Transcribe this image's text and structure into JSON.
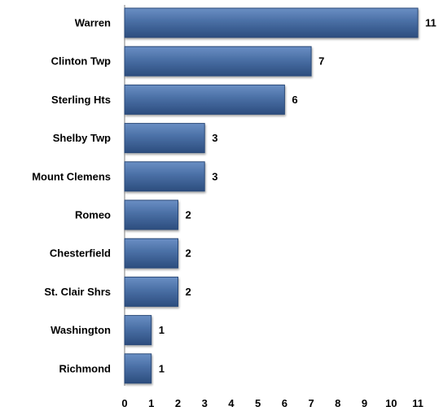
{
  "chart_data": {
    "type": "bar",
    "orientation": "horizontal",
    "title": "",
    "xlabel": "",
    "ylabel": "",
    "categories": [
      "Warren",
      "Clinton Twp",
      "Sterling Hts",
      "Shelby Twp",
      "Mount Clemens",
      "Romeo",
      "Chesterfield",
      "St. Clair Shrs",
      "Washington",
      "Richmond"
    ],
    "values": [
      11,
      7,
      6,
      3,
      3,
      2,
      2,
      2,
      1,
      1
    ],
    "xlim": [
      0,
      11
    ],
    "xticks": [
      "0",
      "1",
      "2",
      "3",
      "4",
      "5",
      "6",
      "7",
      "8",
      "9",
      "10",
      "11"
    ],
    "grid": false,
    "legend": "none",
    "data_labels": true,
    "colors": {
      "bar_fill": "#4a6fa5",
      "bar_light": "#6a8fc4",
      "bar_dark": "#2c4d7e",
      "bar_stroke": "#2b4a78",
      "axis": "#7f7f7f",
      "text": "#000000"
    }
  }
}
